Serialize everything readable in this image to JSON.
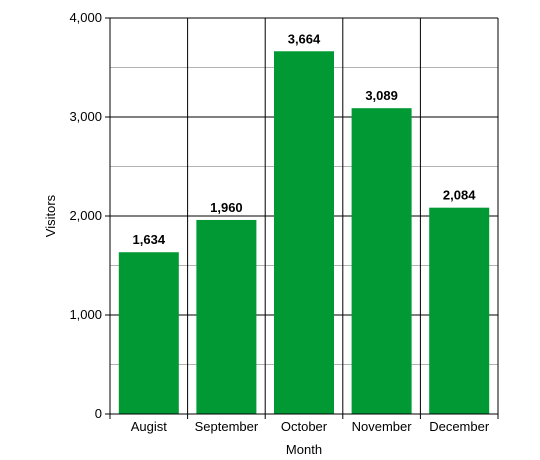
{
  "chart_data": {
    "type": "bar",
    "title": "",
    "xlabel": "Month",
    "ylabel": "Visitors",
    "categories": [
      "Augist",
      "September",
      "October",
      "November",
      "December"
    ],
    "values": [
      1634,
      1960,
      3664,
      3089,
      2084
    ],
    "data_labels": [
      "1,634",
      "1,960",
      "3,664",
      "3,089",
      "2,084"
    ],
    "ylim": [
      0,
      4000
    ],
    "y_ticks": [
      0,
      1000,
      2000,
      3000,
      4000
    ],
    "y_tick_labels": [
      "0",
      "1,000",
      "2,000",
      "3,000",
      "4,000"
    ],
    "minor_gridlines": true,
    "grid": true,
    "legend": "none",
    "bar_color": "#009933"
  }
}
